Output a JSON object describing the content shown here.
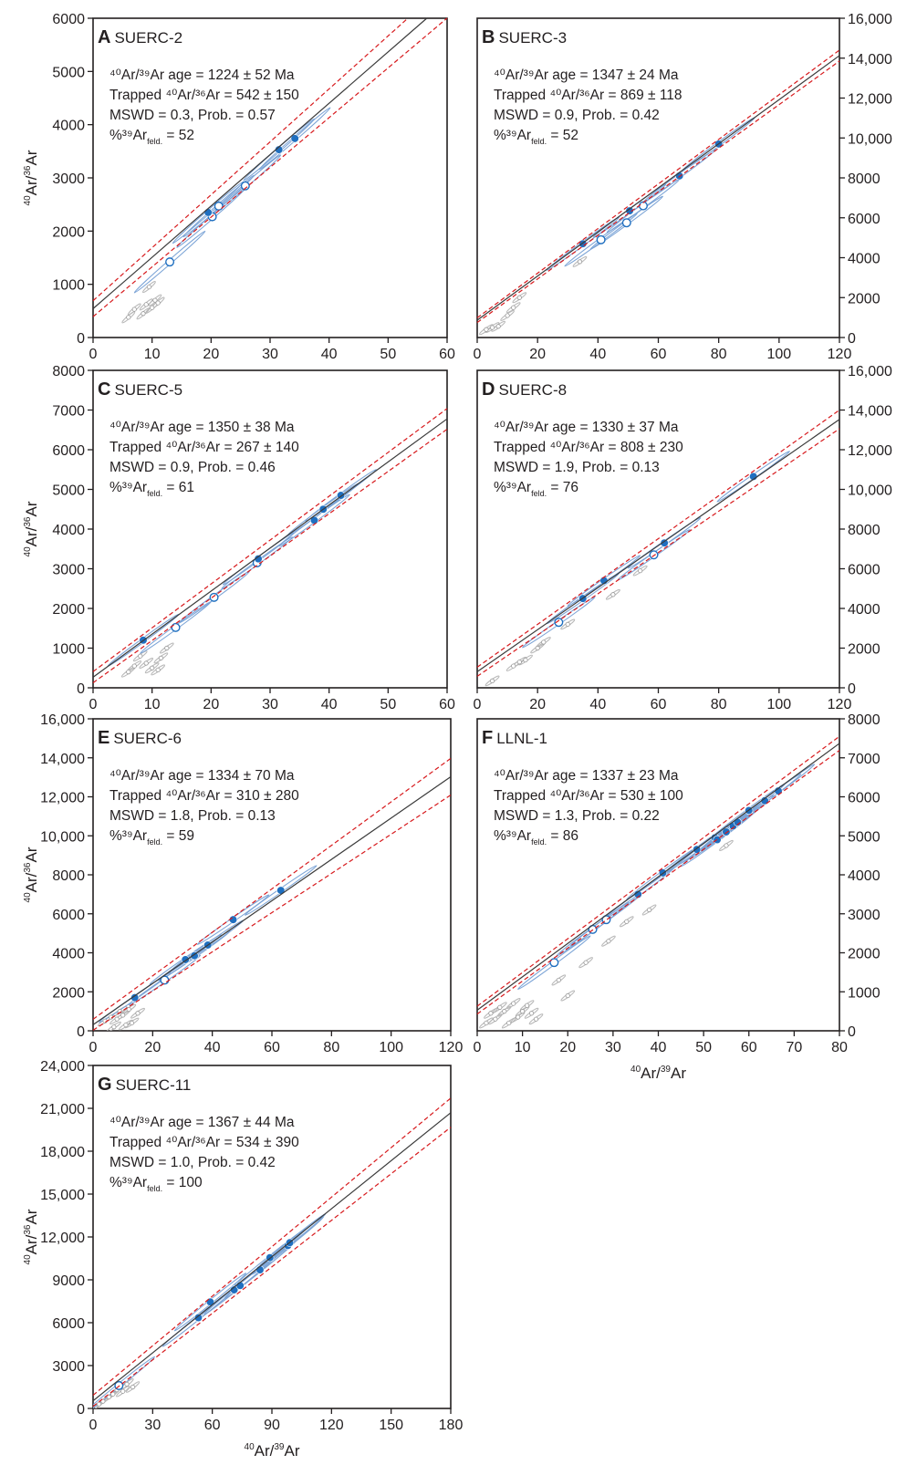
{
  "figure": {
    "x_axis_label": {
      "main": "Ar/",
      "sup1": "40",
      "sup2": "39",
      "tail": "Ar"
    },
    "y_axis_label": {
      "main": "Ar/",
      "sup1": "40",
      "sup2": "36",
      "tail": "Ar"
    }
  },
  "colors": {
    "fit_line": "#3a3a3a",
    "error_envelope": "#d7191c",
    "included_fill": "#1f6fc0",
    "excluded_point": "#999999",
    "included_ellipse": "#7aa3d6",
    "excluded_ellipse": "#b8b8b8"
  },
  "chart_data": [
    {
      "type": "scatter",
      "letter": "A",
      "sample": "SUERC-2",
      "annotations": [
        "⁴⁰Ar/³⁹Ar age = 1224 ± 52 Ma",
        "Trapped ⁴⁰Ar/³⁶Ar = 542 ± 150",
        "MSWD = 0.3, Prob. = 0.57",
        "%³⁹Ar feld. = 52"
      ],
      "x_range": [
        0,
        60
      ],
      "y_range": [
        0,
        6000
      ],
      "x_ticks": [
        "0",
        "10",
        "20",
        "30",
        "40",
        "50",
        "60"
      ],
      "y_ticks": [
        "0",
        "1000",
        "2000",
        "3000",
        "4000",
        "5000",
        "6000"
      ],
      "y_axis_side": "left",
      "show_x_title": false,
      "show_y_title": true,
      "fit": {
        "intercept": 542,
        "slope": 96.5,
        "env_intercept_err": 150,
        "env_slope_err": 3.0
      },
      "included_filled": [
        [
          19.5,
          2350
        ],
        [
          31.5,
          3530
        ],
        [
          34.2,
          3740
        ]
      ],
      "included_open": [
        [
          20.2,
          2270
        ],
        [
          21.3,
          2470
        ],
        [
          25.8,
          2850
        ],
        [
          13,
          1420
        ]
      ],
      "excluded": [
        [
          6,
          380
        ],
        [
          7,
          530
        ],
        [
          8.5,
          450
        ],
        [
          9,
          620
        ],
        [
          10,
          560
        ],
        [
          10.5,
          700
        ],
        [
          9.5,
          950
        ],
        [
          11,
          650
        ]
      ]
    },
    {
      "type": "scatter",
      "letter": "B",
      "sample": "SUERC-3",
      "annotations": [
        "⁴⁰Ar/³⁹Ar age = 1347 ± 24 Ma",
        "Trapped ⁴⁰Ar/³⁶Ar = 869 ± 118",
        "MSWD = 0.9, Prob. = 0.42",
        "%³⁹Ar feld. = 52"
      ],
      "x_range": [
        0,
        120
      ],
      "y_range": [
        0,
        16000
      ],
      "x_ticks": [
        "0",
        "20",
        "40",
        "60",
        "80",
        "100",
        "120"
      ],
      "y_ticks": [
        "0",
        "2000",
        "4000",
        "6000",
        "8000",
        "10,000",
        "12,000",
        "14,000",
        "16,000"
      ],
      "y_axis_side": "right",
      "show_x_title": false,
      "show_y_title": false,
      "fit": {
        "intercept": 869,
        "slope": 110.5,
        "env_intercept_err": 118,
        "env_slope_err": 1.3
      },
      "included_filled": [
        [
          35,
          4700
        ],
        [
          50.5,
          6350
        ],
        [
          67,
          8100
        ],
        [
          80,
          9700
        ]
      ],
      "included_open": [
        [
          41,
          4900
        ],
        [
          49.5,
          5750
        ],
        [
          55,
          6600
        ]
      ],
      "excluded": [
        [
          3,
          400
        ],
        [
          5,
          500
        ],
        [
          7,
          560
        ],
        [
          10,
          1100
        ],
        [
          12,
          1500
        ],
        [
          14,
          2000
        ],
        [
          34,
          3800
        ]
      ]
    },
    {
      "type": "scatter",
      "letter": "C",
      "sample": "SUERC-5",
      "annotations": [
        "⁴⁰Ar/³⁹Ar age = 1350 ± 38 Ma",
        "Trapped ⁴⁰Ar/³⁶Ar = 267 ± 140",
        "MSWD = 0.9, Prob. = 0.46",
        "%³⁹Ar feld. = 61"
      ],
      "x_range": [
        0,
        60
      ],
      "y_range": [
        0,
        8000
      ],
      "x_ticks": [
        "0",
        "10",
        "20",
        "30",
        "40",
        "50",
        "60"
      ],
      "y_ticks": [
        "0",
        "1000",
        "2000",
        "3000",
        "4000",
        "5000",
        "6000",
        "7000",
        "8000"
      ],
      "y_axis_side": "left",
      "show_x_title": false,
      "show_y_title": true,
      "fit": {
        "intercept": 267,
        "slope": 108.5,
        "env_intercept_err": 140,
        "env_slope_err": 2.0
      },
      "included_filled": [
        [
          8.5,
          1200
        ],
        [
          28,
          3250
        ],
        [
          37.5,
          4220
        ],
        [
          39,
          4500
        ],
        [
          42,
          4850
        ]
      ],
      "included_open": [
        [
          14,
          1520
        ],
        [
          20.5,
          2280
        ],
        [
          27.8,
          3150
        ]
      ],
      "excluded": [
        [
          6,
          400
        ],
        [
          7,
          550
        ],
        [
          8,
          800
        ],
        [
          9,
          620
        ],
        [
          10,
          500
        ],
        [
          11,
          450
        ],
        [
          11.5,
          750
        ],
        [
          12.5,
          1000
        ]
      ]
    },
    {
      "type": "scatter",
      "letter": "D",
      "sample": "SUERC-8",
      "annotations": [
        "⁴⁰Ar/³⁹Ar age = 1330 ± 37 Ma",
        "Trapped ⁴⁰Ar/³⁶Ar = 808 ± 230",
        "MSWD = 1.9, Prob. = 0.13",
        "%³⁹Ar feld. = 76"
      ],
      "x_range": [
        0,
        120
      ],
      "y_range": [
        0,
        16000
      ],
      "x_ticks": [
        "0",
        "20",
        "40",
        "60",
        "80",
        "100",
        "120"
      ],
      "y_ticks": [
        "0",
        "2000",
        "4000",
        "6000",
        "8000",
        "10,000",
        "12,000",
        "14,000",
        "16,000"
      ],
      "y_axis_side": "right",
      "show_x_title": false,
      "show_y_title": false,
      "fit": {
        "intercept": 808,
        "slope": 106,
        "env_intercept_err": 230,
        "env_slope_err": 2.0
      },
      "included_filled": [
        [
          35,
          4500
        ],
        [
          42,
          5400
        ],
        [
          62,
          7300
        ],
        [
          91.5,
          10650
        ]
      ],
      "included_open": [
        [
          27,
          3300
        ],
        [
          58.5,
          6700
        ]
      ],
      "excluded": [
        [
          5,
          350
        ],
        [
          12,
          1100
        ],
        [
          14,
          1300
        ],
        [
          16,
          1400
        ],
        [
          20,
          2000
        ],
        [
          22,
          2300
        ],
        [
          30,
          3200
        ],
        [
          45,
          4700
        ],
        [
          54,
          5900
        ]
      ]
    },
    {
      "type": "scatter",
      "letter": "E",
      "sample": "SUERC-6",
      "annotations": [
        "⁴⁰Ar/³⁹Ar age = 1334 ± 70 Ma",
        "Trapped ⁴⁰Ar/³⁶Ar = 310 ± 280",
        "MSWD = 1.8, Prob. = 0.13",
        "%³⁹Ar feld. = 59"
      ],
      "x_range": [
        0,
        120
      ],
      "y_range": [
        0,
        16000
      ],
      "x_ticks": [
        "0",
        "20",
        "40",
        "60",
        "80",
        "100",
        "120"
      ],
      "y_ticks": [
        "0",
        "2000",
        "4000",
        "6000",
        "8000",
        "10,000",
        "12,000",
        "14,000",
        "16,000"
      ],
      "y_axis_side": "left",
      "show_x_title": false,
      "show_y_title": true,
      "fit": {
        "intercept": 310,
        "slope": 106,
        "env_intercept_err": 280,
        "env_slope_err": 5.5
      },
      "included_filled": [
        [
          14,
          1700
        ],
        [
          31,
          3650
        ],
        [
          34,
          3850
        ],
        [
          38.5,
          4400
        ],
        [
          47,
          5700
        ],
        [
          63,
          7200
        ]
      ],
      "included_open": [
        [
          24,
          2600
        ]
      ],
      "excluded": [
        [
          4,
          500
        ],
        [
          6,
          700
        ],
        [
          8,
          600
        ],
        [
          9,
          1000
        ],
        [
          10,
          800
        ],
        [
          11,
          300
        ],
        [
          12,
          1100
        ],
        [
          13,
          400
        ],
        [
          15,
          900
        ],
        [
          7,
          200
        ]
      ]
    },
    {
      "type": "scatter",
      "letter": "F",
      "sample": "LLNL-1",
      "annotations": [
        "⁴⁰Ar/³⁹Ar age = 1337 ± 23 Ma",
        "Trapped ⁴⁰Ar/³⁶Ar = 530 ± 100",
        "MSWD = 1.3, Prob. = 0.22",
        "%³⁹Ar feld. = 86"
      ],
      "x_range": [
        0,
        80
      ],
      "y_range": [
        0,
        8000
      ],
      "x_ticks": [
        "0",
        "10",
        "20",
        "30",
        "40",
        "50",
        "60",
        "70",
        "80"
      ],
      "y_ticks": [
        "0",
        "1000",
        "2000",
        "3000",
        "4000",
        "5000",
        "6000",
        "7000",
        "8000"
      ],
      "y_axis_side": "right",
      "show_x_title": true,
      "show_y_title": false,
      "fit": {
        "intercept": 530,
        "slope": 85.5,
        "env_intercept_err": 100,
        "env_slope_err": 1.0
      },
      "included_filled": [
        [
          35.5,
          3500
        ],
        [
          41,
          4050
        ],
        [
          48.5,
          4650
        ],
        [
          52.5,
          4950
        ],
        [
          55,
          5100
        ],
        [
          56.5,
          5250
        ],
        [
          57.5,
          5350
        ],
        [
          60,
          5650
        ],
        [
          63.5,
          5900
        ],
        [
          66.5,
          6150
        ],
        [
          53,
          4900
        ]
      ],
      "included_open": [
        [
          17,
          1750
        ],
        [
          25.5,
          2600
        ],
        [
          28.5,
          2850
        ]
      ],
      "excluded": [
        [
          2,
          200
        ],
        [
          3,
          450
        ],
        [
          4,
          300
        ],
        [
          5,
          600
        ],
        [
          6,
          500
        ],
        [
          7,
          200
        ],
        [
          8,
          700
        ],
        [
          9,
          350
        ],
        [
          10,
          500
        ],
        [
          11,
          650
        ],
        [
          12,
          450
        ],
        [
          13,
          300
        ],
        [
          18,
          1300
        ],
        [
          24,
          1750
        ],
        [
          33,
          2800
        ],
        [
          38,
          3100
        ],
        [
          55,
          4750
        ],
        [
          20,
          900
        ],
        [
          29,
          2300
        ]
      ]
    },
    {
      "type": "scatter",
      "letter": "G",
      "sample": "SUERC-11",
      "annotations": [
        "⁴⁰Ar/³⁹Ar age = 1367 ± 44 Ma",
        "Trapped ⁴⁰Ar/³⁶Ar = 534 ± 390",
        "MSWD = 1.0, Prob. = 0.42",
        "%³⁹Ar feld. = 100"
      ],
      "x_range": [
        0,
        180
      ],
      "y_range": [
        0,
        24000
      ],
      "x_ticks": [
        "0",
        "30",
        "60",
        "90",
        "120",
        "150",
        "180"
      ],
      "y_ticks": [
        "0",
        "3000",
        "6000",
        "9000",
        "12,000",
        "15,000",
        "18,000",
        "21,000",
        "24,000"
      ],
      "y_axis_side": "left",
      "show_x_title": true,
      "show_y_title": true,
      "fit": {
        "intercept": 534,
        "slope": 112,
        "env_intercept_err": 390,
        "env_slope_err": 3.5
      },
      "included_filled": [
        [
          53,
          6350
        ],
        [
          59,
          7450
        ],
        [
          71,
          8300
        ],
        [
          74,
          8600
        ],
        [
          84,
          9700
        ],
        [
          89,
          10550
        ],
        [
          98,
          11400
        ],
        [
          99,
          11600
        ]
      ],
      "included_open": [
        [
          13,
          1600
        ]
      ],
      "excluded": [
        [
          3,
          300
        ],
        [
          5,
          500
        ],
        [
          8,
          800
        ],
        [
          10,
          1000
        ],
        [
          12,
          1300
        ],
        [
          15,
          1200
        ],
        [
          17,
          1700
        ],
        [
          20,
          1500
        ]
      ]
    }
  ]
}
